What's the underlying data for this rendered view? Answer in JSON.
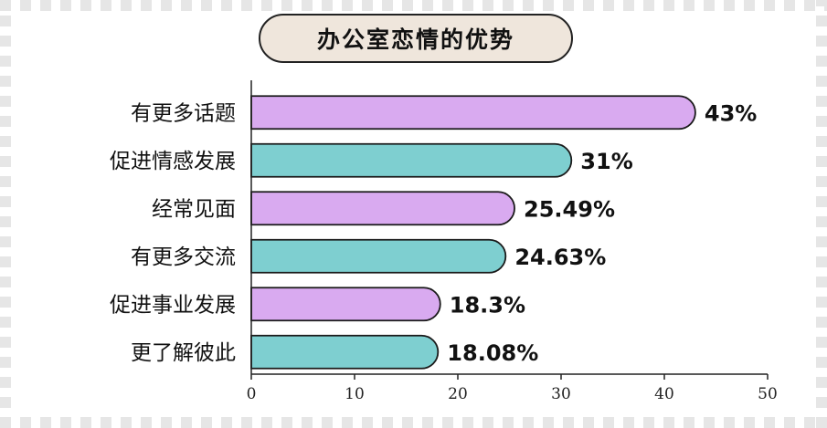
{
  "chart_data": {
    "type": "bar",
    "orientation": "horizontal",
    "title": "办公室恋情的优势",
    "categories": [
      "有更多话题",
      "促进情感发展",
      "经常见面",
      "有更多交流",
      "促进事业发展",
      "更了解彼此"
    ],
    "values": [
      43,
      31,
      25.49,
      24.63,
      18.3,
      18.08
    ],
    "value_labels": [
      "43%",
      "31%",
      "25.49%",
      "24.63%",
      "18.3%",
      "18.08%"
    ],
    "bar_colors": [
      "#d9aaf0",
      "#7ecfd0",
      "#d9aaf0",
      "#7ecfd0",
      "#d9aaf0",
      "#7ecfd0"
    ],
    "xlim": [
      0,
      50
    ],
    "xticks": [
      0,
      10,
      20,
      30,
      40,
      50
    ],
    "xlabel": "",
    "ylabel": "",
    "grid": false,
    "legend": "none"
  }
}
